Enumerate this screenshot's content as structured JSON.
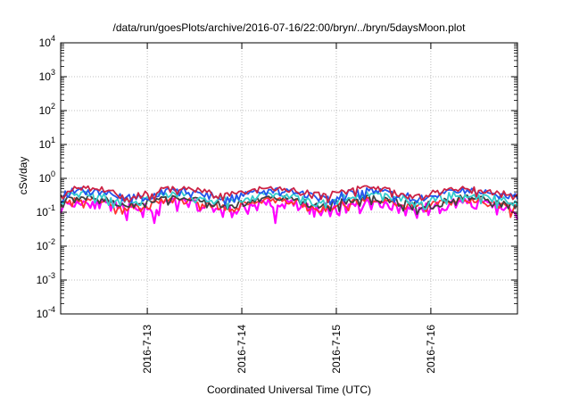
{
  "chart_data": {
    "type": "line",
    "title": "/data/run/goesPlots/archive/2016-07-16/22:00/bryn/../bryn/5daysMoon.plot",
    "xlabel": "Coordinated Universal Time (UTC)",
    "ylabel": "cSv/day",
    "yscale": "log",
    "ylim": [
      0.0001,
      10000
    ],
    "y_ticks": [
      {
        "value": 0.0001,
        "base": "10",
        "exp": "-4"
      },
      {
        "value": 0.001,
        "base": "10",
        "exp": "-3"
      },
      {
        "value": 0.01,
        "base": "10",
        "exp": "-2"
      },
      {
        "value": 0.1,
        "base": "10",
        "exp": "-1"
      },
      {
        "value": 1,
        "base": "10",
        "exp": "0"
      },
      {
        "value": 10,
        "base": "10",
        "exp": "1"
      },
      {
        "value": 100,
        "base": "10",
        "exp": "2"
      },
      {
        "value": 1000,
        "base": "10",
        "exp": "3"
      },
      {
        "value": 10000,
        "base": "10",
        "exp": "4"
      }
    ],
    "xlim": [
      "2016-07-12 02:00",
      "2016-07-16 22:00"
    ],
    "x_ticks": [
      {
        "value": "2016-07-13 00:00",
        "label": "2016-7-13"
      },
      {
        "value": "2016-07-14 00:00",
        "label": "2016-7-14"
      },
      {
        "value": "2016-07-15 00:00",
        "label": "2016-7-15"
      },
      {
        "value": "2016-07-16 00:00",
        "label": "2016-7-16"
      }
    ],
    "grid": true,
    "series": [
      {
        "color": "#ff00ff",
        "level": 0.16,
        "amp": 0.08,
        "dip": true
      },
      {
        "color": "#ff3333",
        "level": 0.19,
        "amp": 0.06,
        "dip": false
      },
      {
        "color": "#404040",
        "level": 0.22,
        "amp": 0.06,
        "dip": false
      },
      {
        "color": "#33cccc",
        "level": 0.28,
        "amp": 0.09,
        "dip": false
      },
      {
        "color": "#2255ee",
        "level": 0.36,
        "amp": 0.11,
        "dip": false
      },
      {
        "color": "#cc2244",
        "level": 0.42,
        "amp": 0.12,
        "dip": false
      }
    ]
  }
}
